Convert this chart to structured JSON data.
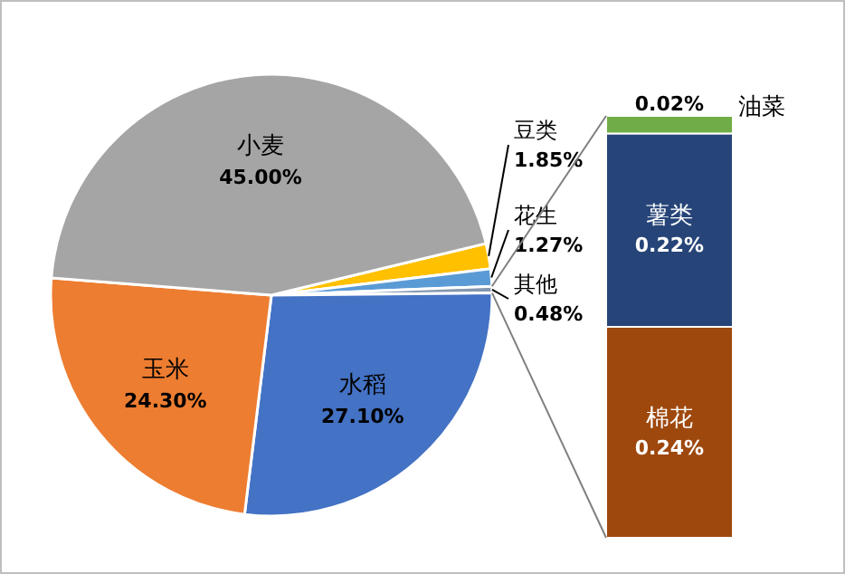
{
  "chart_data": [
    {
      "type": "pie",
      "categories": [
        "豆类",
        "花生",
        "其他",
        "水稻",
        "玉米",
        "小麦"
      ],
      "values": [
        1.85,
        1.27,
        0.48,
        27.1,
        24.3,
        45.0
      ],
      "colors": [
        "#ffc000",
        "#5b9bd5",
        "#8497b0",
        "#4472c4",
        "#ed7d31",
        "#a5a5a5"
      ],
      "value_labels": [
        "1.85%",
        "1.27%",
        "0.48%",
        "27.10%",
        "24.30%",
        "45.00%"
      ]
    },
    {
      "type": "bar",
      "stacked": true,
      "categories": [
        null
      ],
      "series": [
        {
          "name": "棉花",
          "color": "#9e480e",
          "values": [
            0.24
          ],
          "value_labels": [
            "0.24%"
          ]
        },
        {
          "name": "薯类",
          "color": "#264478",
          "values": [
            0.22
          ],
          "value_labels": [
            "0.22%"
          ]
        },
        {
          "name": "油菜",
          "color": "#70ad47",
          "values": [
            0.02
          ],
          "value_labels": [
            "0.02%"
          ]
        }
      ]
    }
  ]
}
